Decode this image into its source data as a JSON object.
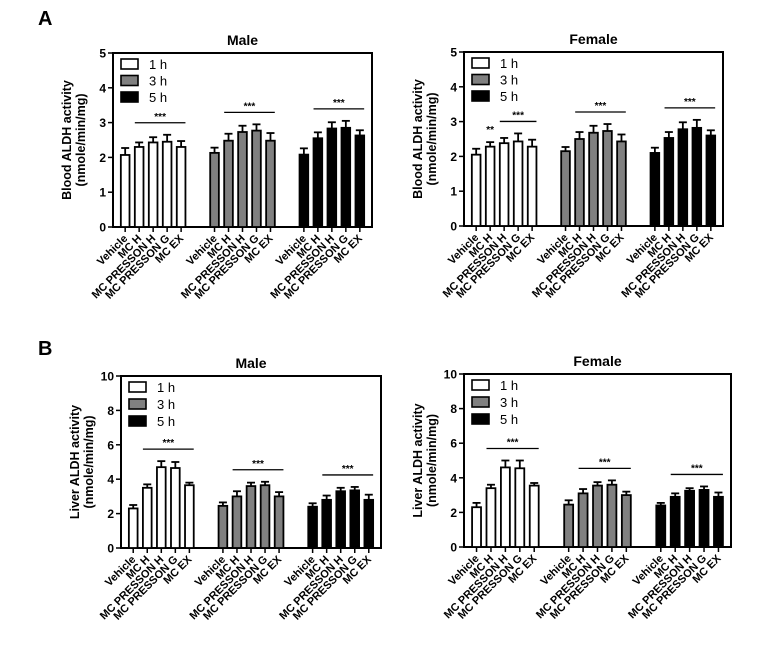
{
  "panels": [
    {
      "letter": "A"
    },
    {
      "letter": "B"
    }
  ],
  "legend_labels": [
    "1 h",
    "3 h",
    "5 h"
  ],
  "colors": {
    "1 h": "#ffffff",
    "3 h": "#808080",
    "5 h": "#000000",
    "axis": "#000000"
  },
  "categories": [
    "Vehicle",
    "MC H",
    "MC PRESSON H",
    "MC PRESSON G",
    "MC EX"
  ],
  "chart_data": [
    {
      "type": "bar",
      "panel": "A",
      "title": "Male",
      "ylabel": "Blood ALDH activity",
      "ylabel_unit": "(nmole/min/mg)",
      "ylim": [
        0,
        5
      ],
      "yticks": [
        0,
        1,
        2,
        3,
        4,
        5
      ],
      "legend": "top-left",
      "series": [
        {
          "name": "1 h",
          "values": [
            2.07,
            2.3,
            2.43,
            2.45,
            2.3
          ],
          "errors": [
            0.2,
            0.13,
            0.15,
            0.2,
            0.17
          ]
        },
        {
          "name": "3 h",
          "values": [
            2.13,
            2.48,
            2.73,
            2.77,
            2.48
          ],
          "errors": [
            0.15,
            0.2,
            0.18,
            0.18,
            0.22
          ]
        },
        {
          "name": "5 h",
          "values": [
            2.08,
            2.55,
            2.83,
            2.85,
            2.63
          ],
          "errors": [
            0.18,
            0.17,
            0.18,
            0.2,
            0.15
          ]
        }
      ],
      "annotations": [
        {
          "series": 0,
          "from": 1,
          "to": 4,
          "text": "***"
        },
        {
          "series": 1,
          "from": 1,
          "to": 4,
          "text": "***"
        },
        {
          "series": 2,
          "from": 1,
          "to": 4,
          "text": "***"
        }
      ]
    },
    {
      "type": "bar",
      "panel": "A",
      "title": "Female",
      "ylabel": "Blood ALDH activity",
      "ylabel_unit": "(nmole/min/mg)",
      "ylim": [
        0,
        5
      ],
      "yticks": [
        0,
        1,
        2,
        3,
        4,
        5
      ],
      "legend": "top-left",
      "series": [
        {
          "name": "1 h",
          "values": [
            2.05,
            2.28,
            2.38,
            2.43,
            2.28
          ],
          "errors": [
            0.17,
            0.13,
            0.15,
            0.23,
            0.2
          ]
        },
        {
          "name": "3 h",
          "values": [
            2.15,
            2.5,
            2.68,
            2.73,
            2.43
          ],
          "errors": [
            0.12,
            0.2,
            0.2,
            0.2,
            0.2
          ]
        },
        {
          "name": "5 h",
          "values": [
            2.1,
            2.53,
            2.78,
            2.82,
            2.6
          ],
          "errors": [
            0.15,
            0.17,
            0.2,
            0.23,
            0.15
          ]
        }
      ],
      "annotations": [
        {
          "series": 0,
          "from": 1,
          "to": 1,
          "text": "**"
        },
        {
          "series": 0,
          "from": 2,
          "to": 4,
          "text": "***"
        },
        {
          "series": 1,
          "from": 1,
          "to": 4,
          "text": "***"
        },
        {
          "series": 2,
          "from": 1,
          "to": 4,
          "text": "***"
        }
      ]
    },
    {
      "type": "bar",
      "panel": "B",
      "title": "Male",
      "ylabel": "Liver ALDH activity",
      "ylabel_unit": "(nmole/min/mg)",
      "ylim": [
        0,
        10
      ],
      "yticks": [
        0,
        2,
        4,
        6,
        8,
        10
      ],
      "legend": "top-left",
      "series": [
        {
          "name": "1 h",
          "values": [
            2.3,
            3.5,
            4.7,
            4.65,
            3.65
          ],
          "errors": [
            0.2,
            0.2,
            0.35,
            0.35,
            0.15
          ]
        },
        {
          "name": "3 h",
          "values": [
            2.45,
            3.0,
            3.6,
            3.65,
            3.0
          ],
          "errors": [
            0.2,
            0.3,
            0.2,
            0.2,
            0.25
          ]
        },
        {
          "name": "5 h",
          "values": [
            2.4,
            2.8,
            3.3,
            3.35,
            2.8
          ],
          "errors": [
            0.2,
            0.25,
            0.2,
            0.2,
            0.3
          ]
        }
      ],
      "annotations": [
        {
          "series": 0,
          "from": 1,
          "to": 4,
          "text": "***"
        },
        {
          "series": 1,
          "from": 1,
          "to": 4,
          "text": "***"
        },
        {
          "series": 2,
          "from": 1,
          "to": 4,
          "text": "***"
        }
      ]
    },
    {
      "type": "bar",
      "panel": "B",
      "title": "Female",
      "ylabel": "Liver ALDH activity",
      "ylabel_unit": "(nmole/min/mg)",
      "ylim": [
        0,
        10
      ],
      "yticks": [
        0,
        2,
        4,
        6,
        8,
        10
      ],
      "legend": "top-left",
      "series": [
        {
          "name": "1 h",
          "values": [
            2.3,
            3.4,
            4.6,
            4.55,
            3.55
          ],
          "errors": [
            0.25,
            0.2,
            0.4,
            0.45,
            0.15
          ]
        },
        {
          "name": "3 h",
          "values": [
            2.45,
            3.1,
            3.55,
            3.6,
            3.0
          ],
          "errors": [
            0.25,
            0.25,
            0.2,
            0.25,
            0.2
          ]
        },
        {
          "name": "5 h",
          "values": [
            2.4,
            2.9,
            3.25,
            3.3,
            2.9
          ],
          "errors": [
            0.15,
            0.2,
            0.15,
            0.2,
            0.25
          ]
        }
      ],
      "annotations": [
        {
          "series": 0,
          "from": 1,
          "to": 4,
          "text": "***"
        },
        {
          "series": 1,
          "from": 1,
          "to": 4,
          "text": "***"
        },
        {
          "series": 2,
          "from": 1,
          "to": 4,
          "text": "***"
        }
      ]
    }
  ]
}
